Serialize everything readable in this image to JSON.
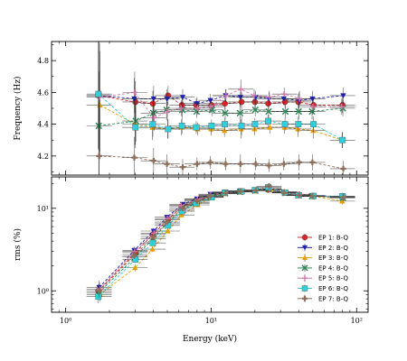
{
  "chart_data": [
    {
      "type": "scatter",
      "panel": "top",
      "xlabel": "",
      "ylabel": "Frequency (Hz)",
      "xscale": "log",
      "xlim": [
        0.8,
        120
      ],
      "ylim": [
        4.08,
        4.92
      ],
      "yticks": [
        4.2,
        4.4,
        4.6,
        4.8
      ],
      "ytick_labels": [
        "4.2",
        "4.4",
        "4.6",
        "4.8"
      ],
      "grid": false,
      "x": [
        1.7,
        3.0,
        4.0,
        5.0,
        6.3,
        8.0,
        10.0,
        12.5,
        16.0,
        20.0,
        25.0,
        32.0,
        40.0,
        50.0,
        80.0
      ],
      "series": [
        {
          "name": "EP 1: B-Q",
          "color": "#d62728",
          "marker": "circle",
          "values": [
            4.58,
            4.54,
            4.53,
            4.58,
            4.52,
            4.52,
            4.52,
            4.53,
            4.54,
            4.54,
            4.53,
            4.54,
            4.54,
            4.52,
            4.52
          ]
        },
        {
          "name": "EP 2: B-Q",
          "color": "#2020b0",
          "marker": "tri_down",
          "values": [
            4.58,
            4.56,
            4.56,
            4.56,
            4.57,
            4.53,
            4.55,
            4.58,
            4.57,
            4.57,
            4.56,
            4.56,
            4.55,
            4.56,
            4.58
          ]
        },
        {
          "name": "EP 3: B-Q",
          "color": "#e69f00",
          "marker": "tri_up",
          "values": [
            4.52,
            4.4,
            4.38,
            4.37,
            4.38,
            4.37,
            4.37,
            4.36,
            4.37,
            4.37,
            4.38,
            4.38,
            4.37,
            4.36,
            4.3
          ]
        },
        {
          "name": "EP 4: B-Q",
          "color": "#2e8b57",
          "marker": "x",
          "values": [
            4.39,
            4.42,
            4.47,
            4.49,
            4.49,
            4.48,
            4.49,
            4.47,
            4.47,
            4.49,
            4.48,
            4.48,
            4.48,
            4.48,
            4.5
          ]
        },
        {
          "name": "EP 5: B-Q",
          "color": "#cc79a7",
          "marker": "plus",
          "values": [
            4.57,
            4.6,
            4.44,
            4.48,
            4.5,
            4.5,
            4.51,
            4.58,
            4.62,
            4.58,
            4.57,
            4.59,
            4.56,
            4.51,
            4.51
          ]
        },
        {
          "name": "EP 6: B-Q",
          "color": "#2fd0dc",
          "marker": "square",
          "values": [
            4.59,
            4.38,
            4.4,
            4.37,
            4.39,
            4.38,
            4.39,
            4.4,
            4.39,
            4.4,
            4.42,
            4.4,
            4.4,
            4.4,
            4.3
          ]
        },
        {
          "name": "EP 7: B-Q",
          "color": "#8c6d5a",
          "marker": "plus_bold",
          "values": [
            4.2,
            4.19,
            4.17,
            4.15,
            4.13,
            4.15,
            4.16,
            4.15,
            4.15,
            4.15,
            4.14,
            4.15,
            4.16,
            4.16,
            4.12
          ]
        }
      ]
    },
    {
      "type": "scatter",
      "panel": "bottom",
      "xlabel": "Energy (keV)",
      "ylabel": "rms (%)",
      "xscale": "log",
      "yscale": "log",
      "xlim": [
        0.8,
        120
      ],
      "ylim": [
        0.55,
        24
      ],
      "xticks": [
        1,
        10,
        100
      ],
      "xtick_labels": [
        "10⁰",
        "10¹",
        "10²"
      ],
      "yticks": [
        1,
        10
      ],
      "ytick_labels": [
        "10⁰",
        "10¹"
      ],
      "grid": false,
      "legend": "right",
      "x": [
        1.7,
        3.0,
        4.0,
        5.0,
        6.3,
        8.0,
        10.0,
        12.5,
        16.0,
        20.0,
        25.0,
        32.0,
        40.0,
        50.0,
        80.0
      ],
      "series": [
        {
          "name": "EP 1: B-Q",
          "color": "#d62728",
          "marker": "circle",
          "values": [
            1.0,
            2.9,
            4.8,
            7.3,
            10.5,
            12.5,
            14.2,
            15.5,
            16.0,
            16.5,
            16.8,
            15.5,
            14.5,
            14.0,
            13.5
          ]
        },
        {
          "name": "EP 2: B-Q",
          "color": "#2020b0",
          "marker": "tri_down",
          "values": [
            1.1,
            3.1,
            5.3,
            7.8,
            11.2,
            13.0,
            14.8,
            15.8,
            16.3,
            16.6,
            17.0,
            15.7,
            14.6,
            14.2,
            13.8
          ]
        },
        {
          "name": "EP 3: B-Q",
          "color": "#e69f00",
          "marker": "tri_up",
          "values": [
            0.9,
            1.9,
            3.2,
            5.3,
            8.3,
            11.0,
            13.5,
            15.0,
            15.8,
            16.5,
            17.2,
            15.6,
            14.4,
            14.0,
            12.2
          ]
        },
        {
          "name": "EP 4: B-Q",
          "color": "#2e8b57",
          "marker": "x",
          "values": [
            0.95,
            2.6,
            4.3,
            6.5,
            9.5,
            11.8,
            13.8,
            15.2,
            15.8,
            16.3,
            17.0,
            15.3,
            14.3,
            14.0,
            13.4
          ]
        },
        {
          "name": "EP 5: B-Q",
          "color": "#cc79a7",
          "marker": "plus",
          "values": [
            1.05,
            3.0,
            5.0,
            7.5,
            10.8,
            12.8,
            14.5,
            15.6,
            16.2,
            16.6,
            17.3,
            15.8,
            14.8,
            14.3,
            13.8
          ]
        },
        {
          "name": "EP 6: B-Q",
          "color": "#2fd0dc",
          "marker": "square",
          "values": [
            0.85,
            2.4,
            3.8,
            6.2,
            9.2,
            11.5,
            13.6,
            15.4,
            16.0,
            16.6,
            18.0,
            15.5,
            14.4,
            14.1,
            14.0
          ]
        },
        {
          "name": "EP 7: B-Q",
          "color": "#8c6d5a",
          "marker": "plus_bold",
          "values": [
            1.0,
            2.7,
            4.5,
            6.8,
            10.0,
            12.2,
            14.0,
            15.3,
            16.0,
            16.4,
            18.5,
            15.4,
            14.4,
            14.0,
            13.6
          ]
        }
      ]
    }
  ]
}
